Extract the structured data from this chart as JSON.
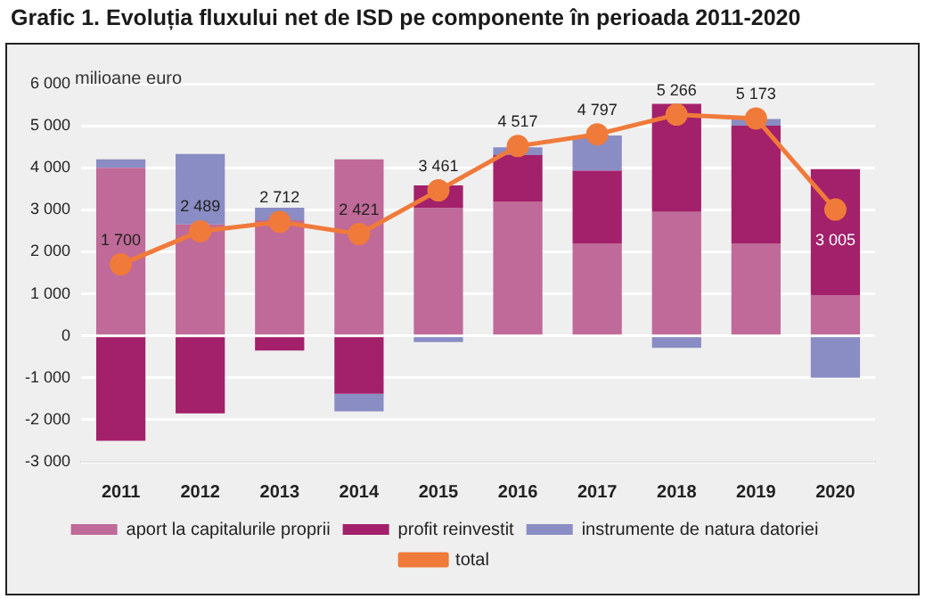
{
  "chart_data": {
    "type": "bar",
    "title": "Grafic 1. Evoluția fluxului net de ISD pe componente în perioada 2011-2020",
    "ylabel": "milioane euro",
    "categories": [
      "2011",
      "2012",
      "2013",
      "2014",
      "2015",
      "2016",
      "2017",
      "2018",
      "2019",
      "2020"
    ],
    "stacked": true,
    "series": [
      {
        "name": "aport la capitalurile proprii",
        "color": "#bf6a98",
        "values": [
          4000,
          2650,
          2750,
          4200,
          3050,
          3200,
          2200,
          2950,
          2200,
          970
        ]
      },
      {
        "name": "profit reinvestit",
        "color": "#a3206a",
        "values": [
          -2500,
          -1850,
          -350,
          -1380,
          530,
          1100,
          1730,
          2570,
          2800,
          3000
        ]
      },
      {
        "name": "instrumente de natura datoriei",
        "color": "#8a8cc4",
        "values": [
          200,
          1680,
          300,
          -420,
          -150,
          190,
          840,
          -290,
          160,
          -1000
        ]
      },
      {
        "name": "total",
        "type": "line",
        "color": "#f07a3a",
        "marker": "circle",
        "values": [
          1700,
          2489,
          2712,
          2421,
          3461,
          4517,
          4797,
          5266,
          5173,
          3005
        ],
        "value_labels": [
          "1 700",
          "2 489",
          "2 712",
          "2 421",
          "3 461",
          "4 517",
          "4 797",
          "5 266",
          "5 173",
          "3 005"
        ]
      }
    ],
    "ylim": [
      -3000,
      6000
    ],
    "yticks": [
      {
        "value": -3000,
        "label": "-3 000"
      },
      {
        "value": -2000,
        "label": "-2 000"
      },
      {
        "value": -1000,
        "label": "-1 000"
      },
      0,
      {
        "value": 1000,
        "label": "1 000"
      },
      {
        "value": 2000,
        "label": "2 000"
      },
      {
        "value": 3000,
        "label": "3 000"
      },
      {
        "value": 4000,
        "label": "4 000"
      },
      {
        "value": 5000,
        "label": "5 000"
      },
      {
        "value": 6000,
        "label": "6 000"
      }
    ],
    "grid": "y",
    "legend": "bottom"
  }
}
